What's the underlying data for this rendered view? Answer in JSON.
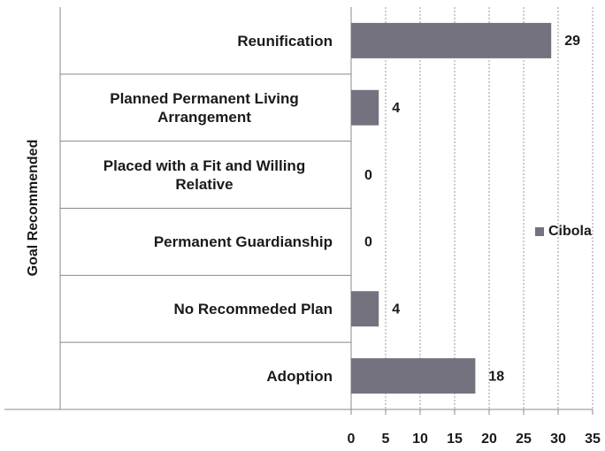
{
  "chart_data": {
    "type": "hbar",
    "y_label": "Goal Recommended",
    "categories": [
      "Reunification",
      "Planned Permanent Living Arrangement",
      "Placed with a Fit and Willing Relative",
      "Permanent Guardianship",
      "No Recommeded Plan",
      "Adoption"
    ],
    "series": [
      {
        "name": "Cibola",
        "color": "#75727f",
        "values": [
          29,
          4,
          0,
          0,
          4,
          18
        ]
      }
    ],
    "xlim": [
      0,
      35
    ],
    "xticks": [
      0,
      5,
      10,
      15,
      20,
      25,
      30,
      35
    ],
    "grid": true,
    "legend": "right"
  }
}
